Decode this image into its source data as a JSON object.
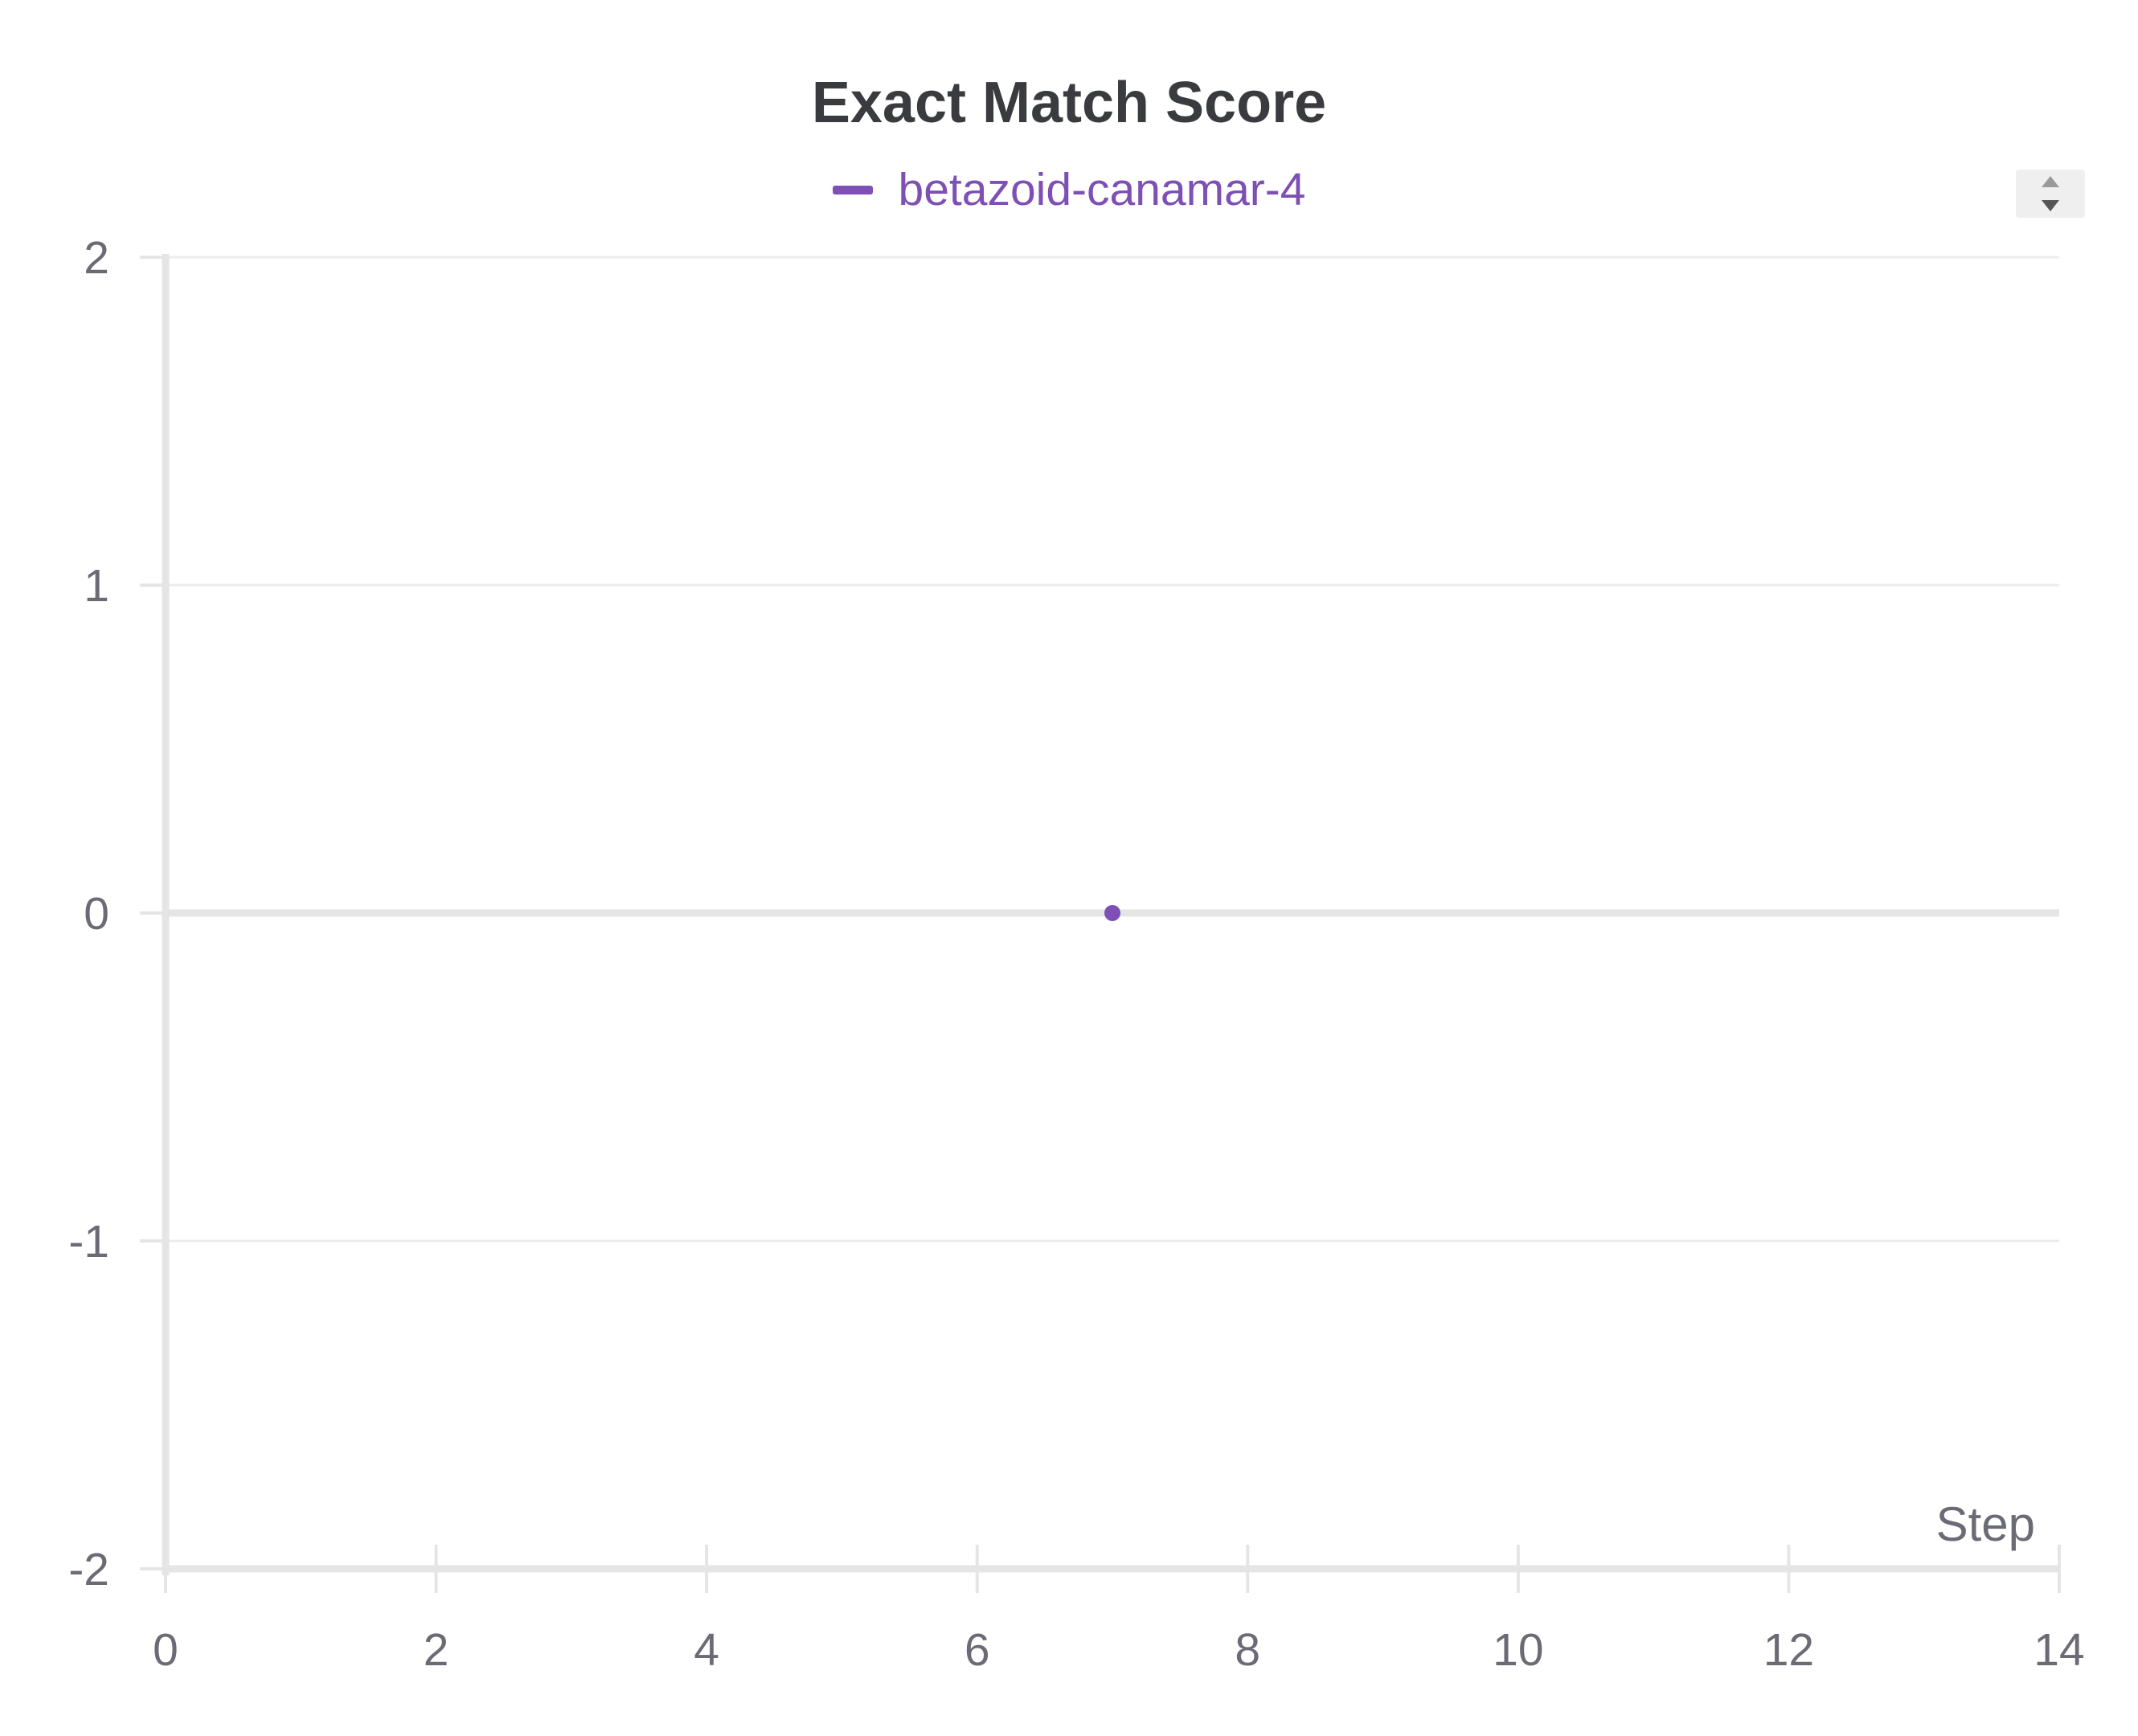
{
  "chart_data": {
    "type": "line",
    "title": "Exact Match Score",
    "xlabel": "Step",
    "ylabel": "",
    "xlim": [
      0,
      14
    ],
    "ylim": [
      -2,
      2
    ],
    "xticks": [
      "0",
      "2",
      "4",
      "6",
      "8",
      "10",
      "12",
      "14"
    ],
    "yticks": [
      "-2",
      "-1",
      "0",
      "1",
      "2"
    ],
    "grid": true,
    "legend_placement": "top-center",
    "series": [
      {
        "name": "betazoid-canamar-4",
        "color": "#7e4fb4",
        "x": [
          7
        ],
        "y": [
          0
        ]
      }
    ]
  },
  "legend": {
    "scroll_icon": "up-down-arrows-icon"
  },
  "colors": {
    "axis": "#e5e5e5",
    "grid": "#ececec",
    "tick_text": "#6b6b76",
    "title": "#3a3b3f"
  }
}
